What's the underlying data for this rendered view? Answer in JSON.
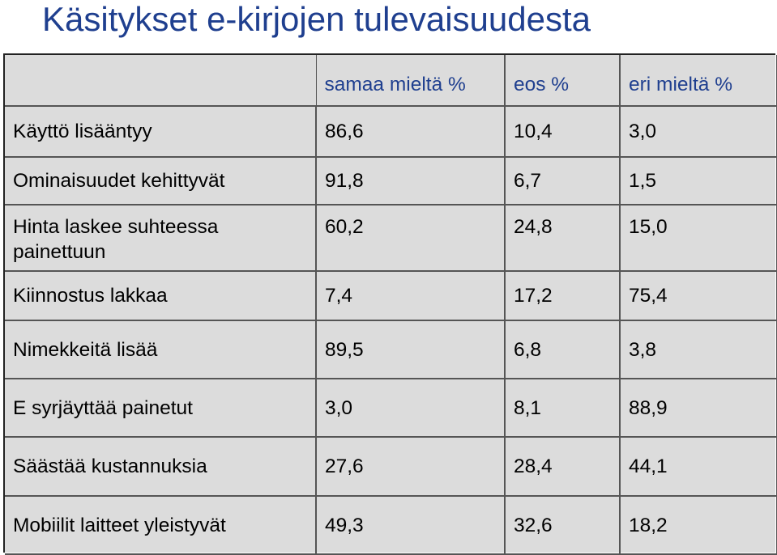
{
  "slide": {
    "title": "Käsitykset e-kirjojen tulevaisuudesta"
  },
  "chart_data": {
    "type": "table",
    "title": "Käsitykset e-kirjojen tulevaisuudesta",
    "columns": [
      "samaa mieltä %",
      "eos %",
      "eri mieltä %"
    ],
    "rows": [
      {
        "label": "Käyttö lisääntyy",
        "values": [
          "86,6",
          "10,4",
          "3,0"
        ]
      },
      {
        "label": "Ominaisuudet kehittyvät",
        "values": [
          "91,8",
          "6,7",
          "1,5"
        ]
      },
      {
        "label": "Hinta laskee suhteessa painettuun",
        "values": [
          "60,2",
          "24,8",
          "15,0"
        ]
      },
      {
        "label": "Kiinnostus lakkaa",
        "values": [
          "7,4",
          "17,2",
          "75,4"
        ]
      },
      {
        "label": "Nimekkeitä lisää",
        "values": [
          "89,5",
          "6,8",
          "3,8"
        ]
      },
      {
        "label": "E syrjäyttää painetut",
        "values": [
          "3,0",
          "8,1",
          "88,9"
        ]
      },
      {
        "label": "Säästää kustannuksia",
        "values": [
          "27,6",
          "28,4",
          "44,1"
        ]
      },
      {
        "label": "Mobiilit laitteet yleistyvät",
        "values": [
          "49,3",
          "32,6",
          "18,2"
        ]
      }
    ]
  }
}
